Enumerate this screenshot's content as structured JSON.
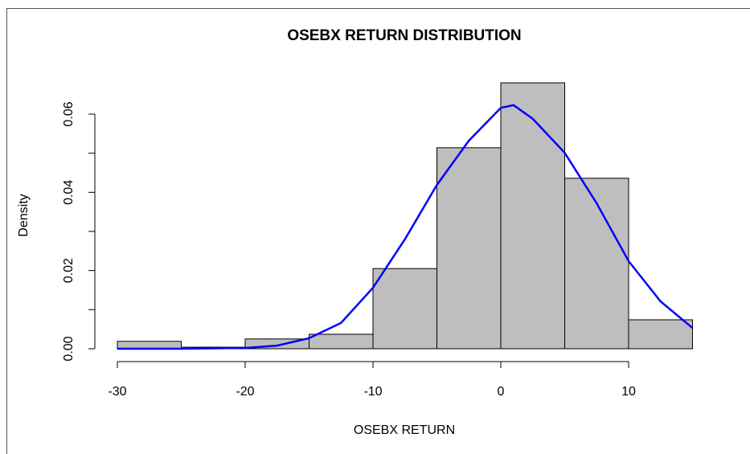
{
  "chart_data": {
    "type": "histogram",
    "title": "OSEBX RETURN DISTRIBUTION",
    "xlabel": "OSEBX RETURN",
    "ylabel": "Density",
    "bins": [
      -30,
      -25,
      -20,
      -15,
      -10,
      -5,
      0,
      5,
      10,
      15
    ],
    "values": [
      0.0019,
      0.0004,
      0.0025,
      0.0037,
      0.0205,
      0.0514,
      0.068,
      0.0436,
      0.0074
    ],
    "bar_color": "#bebebe",
    "density": {
      "color": "#0000ff",
      "x": [
        -30,
        -25,
        -20,
        -17.5,
        -15,
        -12.5,
        -10,
        -7.5,
        -5,
        -2.5,
        0,
        1,
        2.5,
        5,
        7.5,
        10,
        12.5,
        15
      ],
      "values": [
        0,
        0,
        0.0002,
        0.0008,
        0.0027,
        0.0066,
        0.0156,
        0.028,
        0.0419,
        0.0532,
        0.0616,
        0.0623,
        0.0588,
        0.0501,
        0.0372,
        0.0224,
        0.0121,
        0.0053
      ]
    },
    "xlim": [
      -30,
      10
    ],
    "xticks": [
      -30,
      -20,
      -10,
      0,
      10
    ],
    "ylim": [
      0,
      0.06
    ],
    "yticks": [
      {
        "value": 0,
        "label": "0.00"
      },
      {
        "value": 0.02,
        "label": "0.02"
      },
      {
        "value": 0.04,
        "label": "0.04"
      },
      {
        "value": 0.06,
        "label": "0.06"
      }
    ],
    "yminorticks": [
      0.01,
      0.03,
      0.05
    ]
  }
}
